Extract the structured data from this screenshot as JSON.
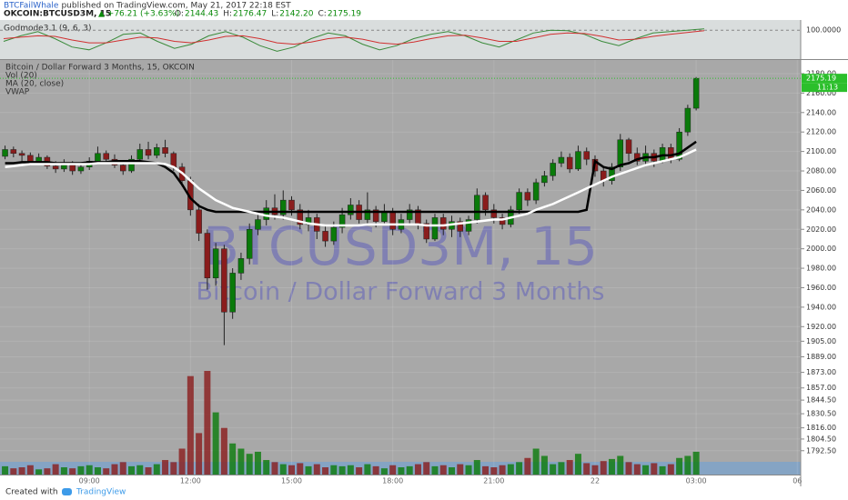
{
  "header": {
    "author": "BTCFailWhale",
    "published": "published on TradingView.com, May 21, 2017 22:18 EST",
    "symbol": "OKCOIN:BTCUSD3M, 15",
    "change": "▲ +76.21 (+3.63%)",
    "ohlc": [
      {
        "label": "O:",
        "value": "2144.43"
      },
      {
        "label": "H:",
        "value": "2176.47"
      },
      {
        "label": "L:",
        "value": "2142.20"
      },
      {
        "label": "C:",
        "value": "2175.19"
      }
    ]
  },
  "footer": {
    "created": "Created with",
    "brand": "TradingView"
  },
  "chart_data": [
    {
      "type": "line",
      "title": "Godmode3.1 (9, 6, 3)",
      "ylim": [
        0,
        130
      ],
      "yticks": [
        {
          "value": 100,
          "label": "100.0000"
        }
      ],
      "series": [
        {
          "color": "#3a8a3a",
          "values": [
            60,
            80,
            95,
            70,
            40,
            30,
            55,
            85,
            90,
            60,
            35,
            50,
            80,
            95,
            75,
            45,
            25,
            40,
            70,
            90,
            80,
            50,
            30,
            45,
            70,
            85,
            95,
            80,
            55,
            40,
            65,
            90,
            100,
            98,
            85,
            60,
            45,
            70,
            90,
            95,
            100,
            105
          ]
        },
        {
          "color": "#d03030",
          "values": [
            70,
            75,
            80,
            78,
            65,
            55,
            55,
            65,
            75,
            72,
            60,
            55,
            65,
            78,
            80,
            70,
            55,
            50,
            58,
            70,
            75,
            68,
            55,
            50,
            58,
            70,
            80,
            82,
            72,
            60,
            60,
            72,
            85,
            90,
            88,
            78,
            65,
            68,
            78,
            85,
            92,
            98
          ]
        }
      ]
    },
    {
      "type": "candlestick",
      "title": "Bitcoin / Dollar Forward 3 Months, 15, OKCOIN",
      "watermark": "BTCUSD3M, 15",
      "watermark_subtitle": "Bitcoin / Dollar Forward 3 Months",
      "last_price_countdown": "11:13",
      "colors": {
        "up": "#0a7a0a",
        "down": "#8a1c1c"
      },
      "open": [
        2095,
        2102,
        2098,
        2096,
        2090,
        2094,
        2085,
        2082,
        2086,
        2080,
        2084,
        2090,
        2098,
        2092,
        2086,
        2080,
        2092,
        2102,
        2096,
        2104,
        2098,
        2084,
        2070,
        2040,
        2016,
        1970,
        2000,
        1935,
        1975,
        1990,
        2020,
        2030,
        2042,
        2035,
        2050,
        2040,
        2025,
        2032,
        2018,
        2008,
        2022,
        2035,
        2045,
        2030,
        2040,
        2028,
        2038,
        2020,
        2030,
        2040,
        2026,
        2010,
        2032,
        2020,
        2028,
        2018,
        2030,
        2055,
        2040,
        2032,
        2025,
        2040,
        2058,
        2050,
        2068,
        2075,
        2088,
        2094,
        2082,
        2100,
        2092,
        2080,
        2070,
        2084,
        2112,
        2098,
        2090,
        2098,
        2090,
        2104,
        2092,
        2120,
        2144.43
      ],
      "high": [
        2106,
        2105,
        2101,
        2099,
        2098,
        2096,
        2090,
        2092,
        2090,
        2089,
        2094,
        2105,
        2101,
        2097,
        2090,
        2096,
        2108,
        2110,
        2108,
        2112,
        2100,
        2088,
        2074,
        2046,
        2020,
        2006,
        2004,
        1980,
        1996,
        2026,
        2038,
        2050,
        2056,
        2060,
        2054,
        2046,
        2040,
        2036,
        2024,
        2028,
        2042,
        2052,
        2050,
        2058,
        2044,
        2046,
        2042,
        2036,
        2046,
        2044,
        2030,
        2036,
        2036,
        2034,
        2032,
        2034,
        2062,
        2058,
        2046,
        2036,
        2044,
        2062,
        2062,
        2072,
        2080,
        2092,
        2100,
        2098,
        2106,
        2104,
        2096,
        2084,
        2088,
        2118,
        2114,
        2104,
        2106,
        2102,
        2108,
        2108,
        2124,
        2148,
        2176.47
      ],
      "low": [
        2092,
        2094,
        2090,
        2086,
        2087,
        2082,
        2078,
        2079,
        2076,
        2077,
        2081,
        2087,
        2088,
        2083,
        2076,
        2078,
        2089,
        2092,
        2093,
        2094,
        2080,
        2064,
        2034,
        2008,
        1958,
        1962,
        1901,
        1928,
        1968,
        1984,
        2014,
        2024,
        2030,
        2030,
        2034,
        2020,
        2018,
        2010,
        2002,
        2004,
        2016,
        2030,
        2026,
        2026,
        2022,
        2024,
        2014,
        2016,
        2024,
        2020,
        2006,
        2008,
        2014,
        2012,
        2012,
        2014,
        2026,
        2034,
        2026,
        2020,
        2022,
        2036,
        2044,
        2046,
        2064,
        2070,
        2084,
        2078,
        2080,
        2086,
        2074,
        2064,
        2066,
        2080,
        2090,
        2086,
        2086,
        2084,
        2088,
        2088,
        2090,
        2116,
        2142.2
      ],
      "close": [
        2102,
        2098,
        2096,
        2090,
        2094,
        2085,
        2082,
        2086,
        2080,
        2084,
        2090,
        2098,
        2092,
        2086,
        2080,
        2092,
        2102,
        2096,
        2104,
        2098,
        2084,
        2070,
        2040,
        2016,
        1970,
        2000,
        1935,
        1975,
        1990,
        2020,
        2030,
        2042,
        2035,
        2050,
        2040,
        2025,
        2032,
        2018,
        2008,
        2022,
        2035,
        2045,
        2030,
        2040,
        2028,
        2038,
        2020,
        2030,
        2040,
        2026,
        2010,
        2032,
        2020,
        2028,
        2018,
        2030,
        2055,
        2040,
        2032,
        2025,
        2040,
        2058,
        2050,
        2068,
        2075,
        2088,
        2094,
        2082,
        2100,
        2092,
        2080,
        2070,
        2084,
        2112,
        2098,
        2090,
        2098,
        2090,
        2104,
        2092,
        2120,
        2144.43,
        2175.19
      ],
      "volume": {
        "name": "Vol (20)",
        "axis": "y2",
        "values": [
          8,
          6,
          7,
          9,
          5,
          6,
          10,
          7,
          6,
          8,
          9,
          7,
          6,
          10,
          12,
          8,
          9,
          7,
          10,
          14,
          12,
          25,
          95,
          40,
          100,
          60,
          45,
          30,
          25,
          20,
          22,
          14,
          12,
          10,
          9,
          11,
          8,
          10,
          7,
          9,
          8,
          9,
          7,
          10,
          8,
          6,
          9,
          7,
          8,
          10,
          12,
          8,
          9,
          7,
          10,
          9,
          14,
          8,
          7,
          9,
          10,
          12,
          16,
          25,
          18,
          10,
          12,
          14,
          20,
          11,
          9,
          13,
          15,
          18,
          12,
          10,
          9,
          11,
          8,
          10,
          16,
          18,
          22
        ]
      },
      "series": [
        {
          "name": "MA (20, close)",
          "color": "#000000",
          "values": [
            2088,
            2088,
            2089,
            2089,
            2089,
            2089,
            2088,
            2088,
            2088,
            2088,
            2089,
            2089,
            2089,
            2090,
            2090,
            2090,
            2090,
            2089,
            2088,
            2084,
            2078,
            2066,
            2052,
            2044,
            2040,
            2038,
            2038,
            2038,
            2038,
            2038,
            2038,
            2038,
            2038,
            2038,
            2038,
            2038,
            2038,
            2038,
            2038,
            2038,
            2038,
            2038,
            2038,
            2038,
            2038,
            2038,
            2038,
            2038,
            2038,
            2038,
            2038,
            2038,
            2038,
            2038,
            2038,
            2038,
            2038,
            2038,
            2038,
            2038,
            2038,
            2038,
            2038,
            2038,
            2038,
            2038,
            2038,
            2038,
            2038,
            2040,
            2090,
            2084,
            2082,
            2086,
            2088,
            2092,
            2094,
            2094,
            2096,
            2096,
            2098,
            2104,
            2110
          ]
        },
        {
          "name": "VWAP",
          "color": "#ffffff",
          "values": [
            2084,
            2085,
            2086,
            2087,
            2087,
            2087,
            2087,
            2087,
            2087,
            2087,
            2087,
            2088,
            2088,
            2088,
            2088,
            2088,
            2088,
            2088,
            2088,
            2087,
            2084,
            2078,
            2070,
            2062,
            2056,
            2050,
            2046,
            2042,
            2040,
            2038,
            2036,
            2034,
            2033,
            2032,
            2030,
            2028,
            2026,
            2025,
            2024,
            2024,
            2024,
            2024,
            2024,
            2025,
            2025,
            2025,
            2025,
            2025,
            2025,
            2025,
            2024,
            2024,
            2024,
            2025,
            2026,
            2027,
            2028,
            2029,
            2030,
            2030,
            2032,
            2034,
            2036,
            2040,
            2043,
            2046,
            2050,
            2054,
            2058,
            2062,
            2066,
            2070,
            2074,
            2077,
            2080,
            2083,
            2086,
            2088,
            2090,
            2092,
            2094,
            2098,
            2102
          ]
        }
      ],
      "ylim": [
        1768,
        2194
      ],
      "yticks": [
        {
          "value": 2180,
          "label": "2180.00"
        },
        {
          "value": 2160,
          "label": "2160.00"
        },
        {
          "value": 2140,
          "label": "2140.00"
        },
        {
          "value": 2120,
          "label": "2120.00"
        },
        {
          "value": 2100,
          "label": "2100.00"
        },
        {
          "value": 2080,
          "label": "2080.00"
        },
        {
          "value": 2060,
          "label": "2060.00"
        },
        {
          "value": 2040,
          "label": "2040.00"
        },
        {
          "value": 2020,
          "label": "2020.00"
        },
        {
          "value": 2000,
          "label": "2000.00"
        },
        {
          "value": 1980,
          "label": "1980.00"
        },
        {
          "value": 1960,
          "label": "1960.00"
        },
        {
          "value": 1940,
          "label": "1940.00"
        },
        {
          "value": 1920,
          "label": "1920.00"
        },
        {
          "value": 1905,
          "label": "1905.00"
        },
        {
          "value": 1889,
          "label": "1889.00"
        },
        {
          "value": 1873,
          "label": "1873.00"
        },
        {
          "value": 1857,
          "label": "1857.00"
        },
        {
          "value": 1844.5,
          "label": "1844.50"
        },
        {
          "value": 1830.5,
          "label": "1830.50"
        },
        {
          "value": 1816,
          "label": "1816.00"
        },
        {
          "value": 1804.5,
          "label": "1804.50"
        },
        {
          "value": 1792.5,
          "label": "1792.50"
        }
      ],
      "y2lim": [
        0,
        400
      ],
      "xlim": [
        -0.6,
        94.4
      ],
      "xticks": [
        {
          "value": 10,
          "label": "09:00"
        },
        {
          "value": 22,
          "label": "12:00"
        },
        {
          "value": 34,
          "label": "15:00"
        },
        {
          "value": 46,
          "label": "18:00"
        },
        {
          "value": 58,
          "label": "21:00"
        },
        {
          "value": 70,
          "label": "22"
        },
        {
          "value": 82,
          "label": "03:00"
        },
        {
          "value": 94,
          "label": "06"
        }
      ]
    }
  ]
}
